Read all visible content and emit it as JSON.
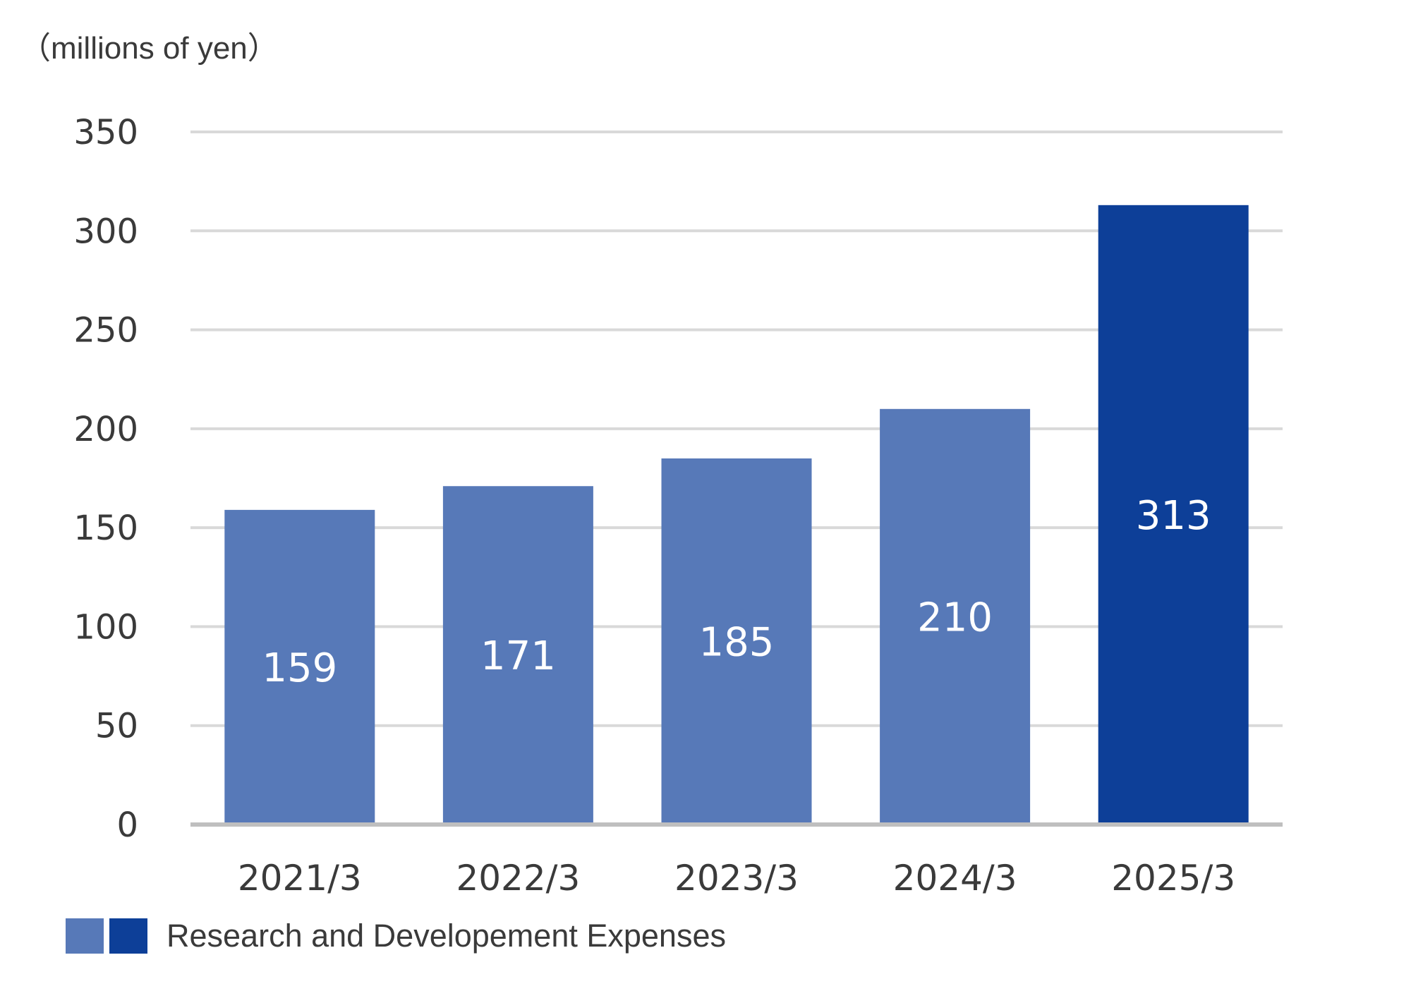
{
  "chart_data": {
    "type": "bar",
    "unit_label": "（millions of yen）",
    "categories": [
      "2021/3",
      "2022/3",
      "2023/3",
      "2024/3",
      "2025/3"
    ],
    "series": [
      {
        "name": "Research and Developement Expenses",
        "values": [
          159,
          171,
          185,
          210,
          313
        ],
        "labels": [
          "159",
          "171",
          "185",
          "210",
          "313"
        ],
        "colors": [
          "#5779b8",
          "#5779b8",
          "#5779b8",
          "#5779b8",
          "#0d3f98"
        ]
      }
    ],
    "ylim": [
      0,
      350
    ],
    "yticks": [
      0,
      50,
      100,
      150,
      200,
      250,
      300,
      350
    ],
    "ytick_labels": [
      "0",
      "50",
      "100",
      "150",
      "200",
      "250",
      "300",
      "350"
    ],
    "grid": true,
    "legend": {
      "position": "bottom-left",
      "label": "Research and Developement Expenses",
      "swatch_colors": [
        "#5779b8",
        "#0d3f98"
      ]
    }
  }
}
